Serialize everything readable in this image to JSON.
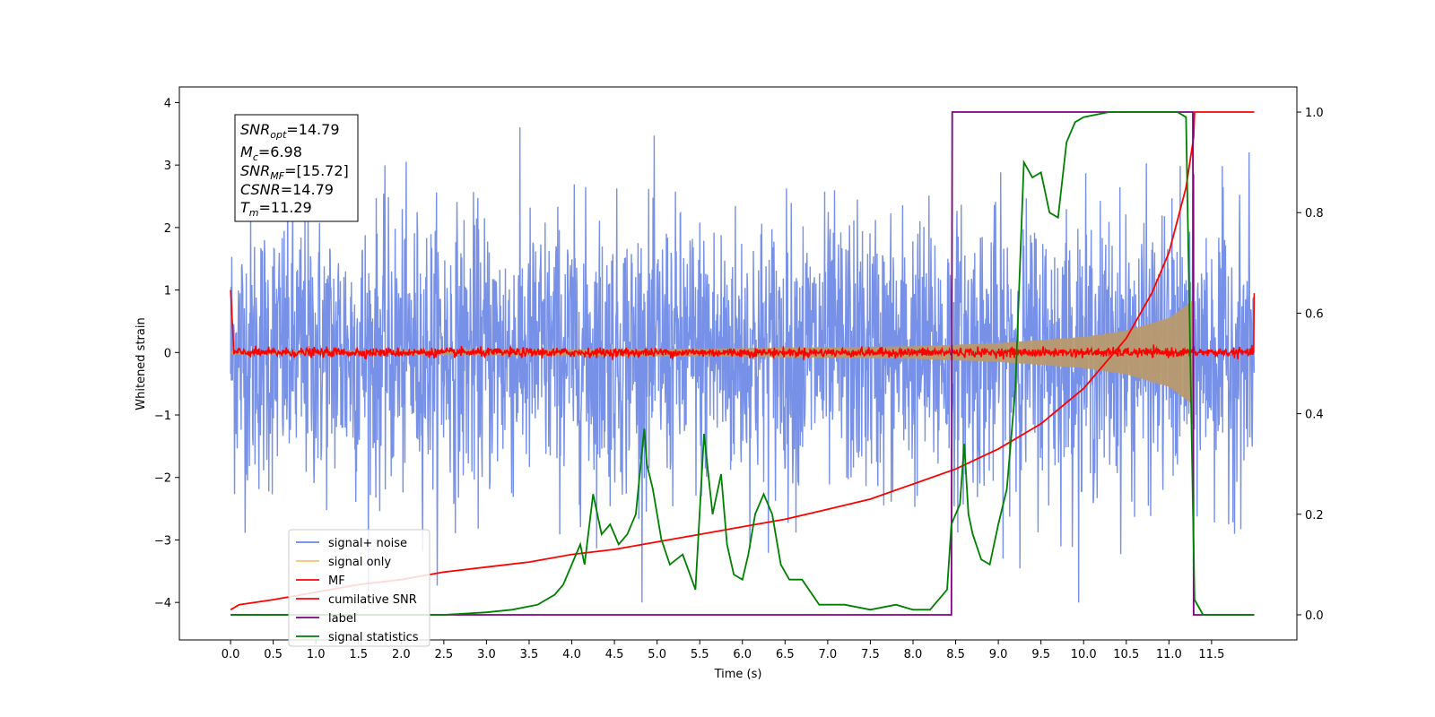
{
  "chart_data": {
    "type": "line",
    "xlabel": "Time (s)",
    "ylabel": "Whitened strain",
    "xlim": [
      -0.6,
      12.5
    ],
    "ylim": [
      -4.6,
      4.25
    ],
    "y2lim": [
      -0.05,
      1.05
    ],
    "x_ticks": [
      "0.0",
      "0.5",
      "1.0",
      "1.5",
      "2.0",
      "2.5",
      "3.0",
      "3.5",
      "4.0",
      "4.5",
      "5.0",
      "5.5",
      "6.0",
      "6.5",
      "7.0",
      "7.5",
      "8.0",
      "8.5",
      "9.0",
      "9.5",
      "10.0",
      "10.5",
      "11.0",
      "11.5"
    ],
    "y_ticks": [
      "4",
      "3",
      "2",
      "1",
      "0",
      "−1",
      "−2",
      "−3",
      "−4"
    ],
    "y2_ticks": [
      "1.0",
      "0.8",
      "0.6",
      "0.4",
      "0.2",
      "0.0"
    ],
    "legend_position": "lower-left",
    "annotation": {
      "snr_opt": {
        "base": "SNR",
        "sub": "opt",
        "value": "=14.79"
      },
      "mc": {
        "base": "M",
        "sub": "c",
        "value": "=6.98"
      },
      "snr_mf": {
        "base": "SNR",
        "sub": "MF",
        "value": "=[15.72]"
      },
      "csnr": {
        "base": "CSNR",
        "value": "=14.79"
      },
      "tm": {
        "base": "T",
        "sub": "m",
        "value": "=11.29"
      }
    },
    "series": [
      {
        "name": "signal+ noise",
        "color": "#6b87e6",
        "axis": "left",
        "kind": "noise",
        "amplitude_range": [
          -4.0,
          3.85
        ],
        "x_range": [
          0.0,
          12.0
        ]
      },
      {
        "name": "signal only",
        "color": "#f5c26b",
        "axis": "left",
        "kind": "chirp",
        "envelope_x": [
          0.0,
          4.0,
          6.0,
          8.0,
          9.0,
          10.0,
          10.5,
          11.0,
          11.2,
          11.29
        ],
        "envelope_y": [
          0.03,
          0.05,
          0.07,
          0.1,
          0.15,
          0.25,
          0.35,
          0.55,
          0.75,
          0.85
        ]
      },
      {
        "name": "MF",
        "color": "#ff0000",
        "axis": "left",
        "kind": "noise",
        "baseline": 0.0,
        "spread": 0.08,
        "x_range": [
          0.0,
          12.0
        ],
        "end_points": [
          [
            0.0,
            1.0
          ],
          [
            12.0,
            0.95
          ]
        ]
      },
      {
        "name": "cumilative SNR",
        "color": "#ff0000",
        "axis": "right",
        "x": [
          0.0,
          0.1,
          0.5,
          1.0,
          1.5,
          2.0,
          2.5,
          3.0,
          3.5,
          4.0,
          4.5,
          5.0,
          5.5,
          6.0,
          6.5,
          7.0,
          7.5,
          8.0,
          8.5,
          9.0,
          9.5,
          10.0,
          10.5,
          10.8,
          11.0,
          11.2,
          11.29,
          11.3,
          12.0
        ],
        "y": [
          0.01,
          0.02,
          0.03,
          0.045,
          0.06,
          0.07,
          0.085,
          0.095,
          0.105,
          0.12,
          0.13,
          0.145,
          0.16,
          0.175,
          0.19,
          0.21,
          0.23,
          0.26,
          0.29,
          0.33,
          0.38,
          0.45,
          0.55,
          0.64,
          0.72,
          0.85,
          0.95,
          1.0,
          1.0
        ]
      },
      {
        "name": "label",
        "color": "#800080",
        "axis": "right",
        "x": [
          0.0,
          8.45,
          8.46,
          11.28,
          11.29,
          12.0
        ],
        "y": [
          0.0,
          0.0,
          1.0,
          1.0,
          0.0,
          0.0
        ]
      },
      {
        "name": "signal statistics",
        "color": "#008000",
        "axis": "right",
        "x": [
          0.0,
          0.5,
          1.0,
          1.5,
          2.0,
          2.5,
          3.0,
          3.3,
          3.6,
          3.8,
          3.9,
          4.0,
          4.1,
          4.15,
          4.25,
          4.35,
          4.45,
          4.55,
          4.65,
          4.75,
          4.85,
          4.88,
          4.95,
          5.05,
          5.15,
          5.3,
          5.45,
          5.55,
          5.65,
          5.75,
          5.82,
          5.9,
          6.0,
          6.07,
          6.15,
          6.25,
          6.35,
          6.45,
          6.55,
          6.7,
          6.9,
          7.0,
          7.2,
          7.5,
          7.8,
          8.0,
          8.2,
          8.4,
          8.45,
          8.5,
          8.55,
          8.6,
          8.65,
          8.7,
          8.8,
          8.9,
          9.0,
          9.1,
          9.2,
          9.3,
          9.4,
          9.5,
          9.6,
          9.7,
          9.8,
          9.9,
          10.0,
          10.3,
          10.6,
          10.9,
          11.1,
          11.2,
          11.3,
          11.4,
          12.0
        ],
        "y": [
          0.0,
          0.0,
          0.0,
          0.0,
          0.0,
          0.0,
          0.005,
          0.01,
          0.02,
          0.04,
          0.06,
          0.1,
          0.14,
          0.1,
          0.24,
          0.16,
          0.18,
          0.14,
          0.16,
          0.2,
          0.37,
          0.3,
          0.25,
          0.15,
          0.1,
          0.12,
          0.05,
          0.36,
          0.2,
          0.28,
          0.14,
          0.08,
          0.07,
          0.12,
          0.2,
          0.24,
          0.2,
          0.1,
          0.07,
          0.07,
          0.02,
          0.02,
          0.02,
          0.01,
          0.02,
          0.01,
          0.01,
          0.05,
          0.18,
          0.2,
          0.22,
          0.34,
          0.2,
          0.16,
          0.11,
          0.1,
          0.18,
          0.25,
          0.45,
          0.9,
          0.87,
          0.88,
          0.8,
          0.79,
          0.94,
          0.98,
          0.99,
          1.0,
          1.0,
          1.0,
          1.0,
          0.99,
          0.03,
          0.0,
          0.0
        ]
      }
    ]
  }
}
